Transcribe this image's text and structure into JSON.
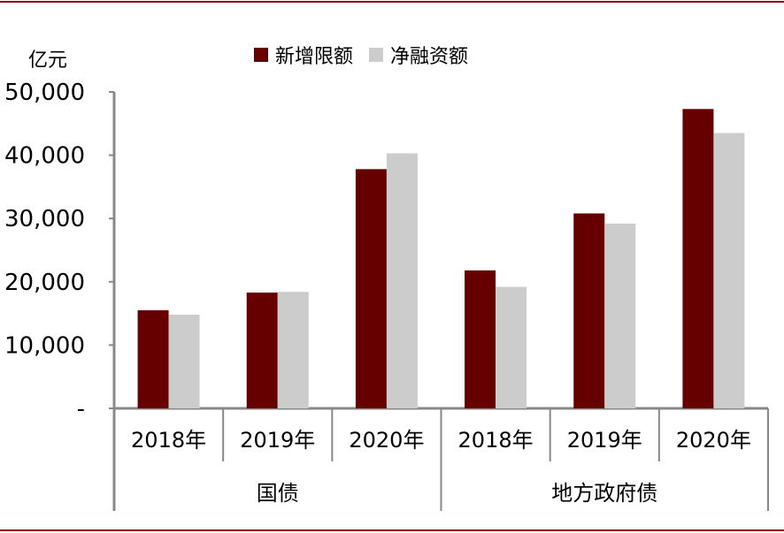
{
  "chart_data": {
    "type": "bar",
    "unit_label": "亿元",
    "groups": [
      {
        "label": "国债",
        "categories": [
          "2018年",
          "2019年",
          "2020年"
        ]
      },
      {
        "label": "地方政府债",
        "categories": [
          "2018年",
          "2019年",
          "2020年"
        ]
      }
    ],
    "series": [
      {
        "name": "新增限额",
        "color": "#660000",
        "values": [
          15500,
          18300,
          37800,
          21800,
          30800,
          47300
        ]
      },
      {
        "name": "净融资额",
        "color": "#cccccc",
        "values": [
          14800,
          18400,
          40300,
          19200,
          29200,
          43500
        ]
      }
    ],
    "ylim": [
      0,
      50000
    ],
    "yticks": [
      {
        "value": 0,
        "label": "-"
      },
      {
        "value": 10000,
        "label": "10,000"
      },
      {
        "value": 20000,
        "label": "20,000"
      },
      {
        "value": 30000,
        "label": "30,000"
      },
      {
        "value": 40000,
        "label": "40,000"
      },
      {
        "value": 50000,
        "label": "50,000"
      }
    ],
    "grid": false,
    "legend_position": "top-center"
  }
}
